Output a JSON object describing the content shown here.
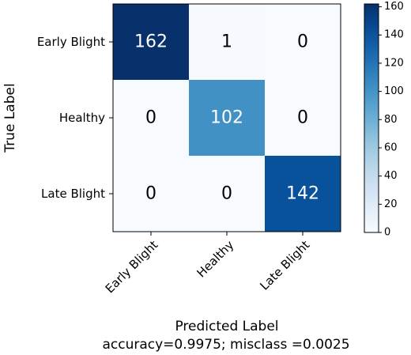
{
  "chart_data": {
    "type": "heatmap",
    "xlabel": "Predicted Label",
    "ylabel": "True Label",
    "x_categories": [
      "Early Blight",
      "Healthy",
      "Late Blight"
    ],
    "y_categories": [
      "Early Blight",
      "Healthy",
      "Late Blight"
    ],
    "matrix": [
      [
        162,
        1,
        0
      ],
      [
        0,
        102,
        0
      ],
      [
        0,
        0,
        142
      ]
    ],
    "footer": "accuracy=0.9975; misclass =0.0025",
    "colormap": "Blues",
    "color_min": "#f7fbff",
    "color_max": "#08306b",
    "vmin": 0,
    "vmax": 162,
    "colorbar_ticks": [
      0,
      20,
      40,
      60,
      80,
      100,
      120,
      140,
      160
    ],
    "grid": false
  }
}
